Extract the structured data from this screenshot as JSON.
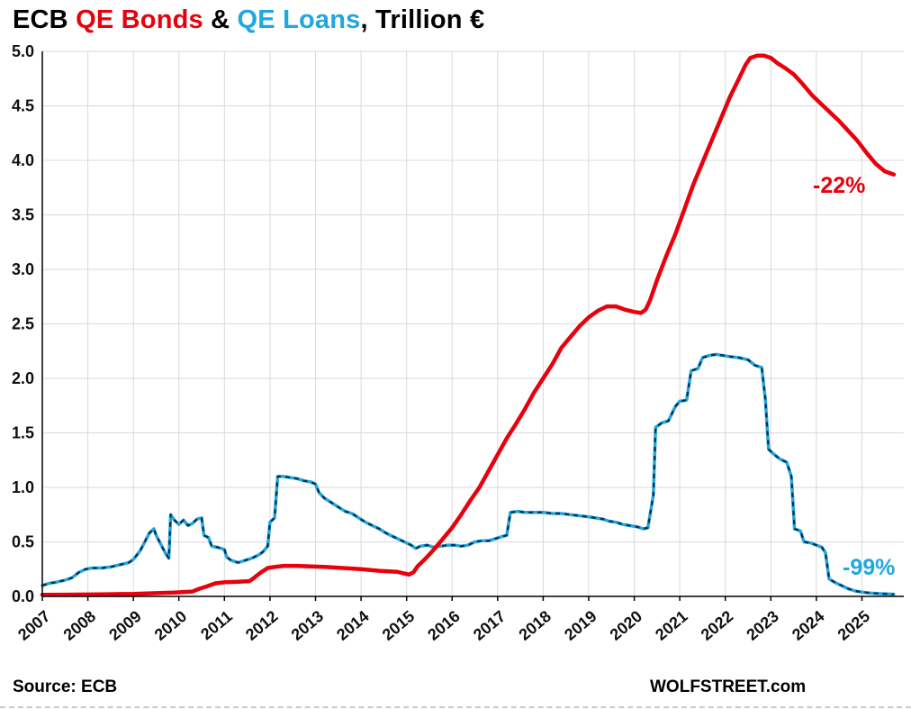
{
  "title": {
    "prefix": "ECB ",
    "bonds": "QE Bonds",
    "amp": " & ",
    "loans": "QE Loans",
    "suffix": ", Trillion €"
  },
  "footer": {
    "source": "Source: ECB",
    "brand": "WOLFSTREET.com"
  },
  "colors": {
    "bonds": "#e8000d",
    "loans": "#1fa7e0",
    "loans_overlay": "#132c44",
    "grid": "#d9d9d9",
    "axis": "#000000",
    "tick_text": "#111111"
  },
  "chart_data": {
    "type": "line",
    "title": "ECB QE Bonds & QE Loans, Trillion €",
    "xlabel": "",
    "ylabel": "Trillion €",
    "ylim": [
      0,
      5
    ],
    "ytick_step": 0.5,
    "xlim": [
      2007,
      2025.92
    ],
    "xticks": [
      2007,
      2008,
      2009,
      2010,
      2011,
      2012,
      2013,
      2014,
      2015,
      2016,
      2017,
      2018,
      2019,
      2020,
      2021,
      2022,
      2023,
      2024,
      2025
    ],
    "grid": true,
    "legend_position": "none (colored title)",
    "annotations": [
      {
        "text": "-22%",
        "series": "QE Bonds",
        "color_key": "bonds"
      },
      {
        "text": "-99%",
        "series": "QE Loans",
        "color_key": "loans"
      }
    ],
    "series": [
      {
        "name": "QE Loans",
        "color_key": "loans",
        "overlay_color_key": "loans_overlay",
        "style": "cyan line with dark dashed overlay",
        "points": [
          [
            2007.0,
            0.1
          ],
          [
            2007.15,
            0.12
          ],
          [
            2007.3,
            0.13
          ],
          [
            2007.5,
            0.15
          ],
          [
            2007.65,
            0.17
          ],
          [
            2007.8,
            0.22
          ],
          [
            2007.95,
            0.25
          ],
          [
            2008.1,
            0.26
          ],
          [
            2008.3,
            0.26
          ],
          [
            2008.5,
            0.27
          ],
          [
            2008.7,
            0.29
          ],
          [
            2008.9,
            0.31
          ],
          [
            2009.0,
            0.34
          ],
          [
            2009.15,
            0.42
          ],
          [
            2009.25,
            0.5
          ],
          [
            2009.35,
            0.58
          ],
          [
            2009.45,
            0.62
          ],
          [
            2009.5,
            0.56
          ],
          [
            2009.6,
            0.48
          ],
          [
            2009.7,
            0.4
          ],
          [
            2009.78,
            0.35
          ],
          [
            2009.82,
            0.75
          ],
          [
            2009.9,
            0.7
          ],
          [
            2010.0,
            0.66
          ],
          [
            2010.1,
            0.7
          ],
          [
            2010.2,
            0.65
          ],
          [
            2010.3,
            0.67
          ],
          [
            2010.4,
            0.71
          ],
          [
            2010.5,
            0.72
          ],
          [
            2010.55,
            0.56
          ],
          [
            2010.65,
            0.54
          ],
          [
            2010.72,
            0.46
          ],
          [
            2010.85,
            0.45
          ],
          [
            2011.0,
            0.43
          ],
          [
            2011.05,
            0.36
          ],
          [
            2011.15,
            0.33
          ],
          [
            2011.3,
            0.31
          ],
          [
            2011.45,
            0.33
          ],
          [
            2011.6,
            0.35
          ],
          [
            2011.75,
            0.38
          ],
          [
            2011.85,
            0.41
          ],
          [
            2011.95,
            0.46
          ],
          [
            2012.0,
            0.68
          ],
          [
            2012.1,
            0.72
          ],
          [
            2012.17,
            1.1
          ],
          [
            2012.3,
            1.1
          ],
          [
            2012.45,
            1.09
          ],
          [
            2012.6,
            1.08
          ],
          [
            2012.75,
            1.06
          ],
          [
            2012.9,
            1.05
          ],
          [
            2013.0,
            1.03
          ],
          [
            2013.08,
            0.95
          ],
          [
            2013.2,
            0.9
          ],
          [
            2013.35,
            0.86
          ],
          [
            2013.5,
            0.82
          ],
          [
            2013.65,
            0.78
          ],
          [
            2013.8,
            0.76
          ],
          [
            2013.95,
            0.72
          ],
          [
            2014.1,
            0.68
          ],
          [
            2014.25,
            0.65
          ],
          [
            2014.4,
            0.62
          ],
          [
            2014.55,
            0.58
          ],
          [
            2014.7,
            0.55
          ],
          [
            2014.85,
            0.52
          ],
          [
            2015.0,
            0.49
          ],
          [
            2015.1,
            0.47
          ],
          [
            2015.2,
            0.44
          ],
          [
            2015.3,
            0.46
          ],
          [
            2015.45,
            0.47
          ],
          [
            2015.6,
            0.45
          ],
          [
            2015.75,
            0.46
          ],
          [
            2015.9,
            0.47
          ],
          [
            2016.05,
            0.47
          ],
          [
            2016.2,
            0.46
          ],
          [
            2016.35,
            0.47
          ],
          [
            2016.5,
            0.5
          ],
          [
            2016.65,
            0.51
          ],
          [
            2016.8,
            0.51
          ],
          [
            2016.95,
            0.53
          ],
          [
            2017.1,
            0.55
          ],
          [
            2017.2,
            0.56
          ],
          [
            2017.28,
            0.77
          ],
          [
            2017.45,
            0.78
          ],
          [
            2017.6,
            0.77
          ],
          [
            2017.8,
            0.77
          ],
          [
            2018.0,
            0.77
          ],
          [
            2018.2,
            0.76
          ],
          [
            2018.4,
            0.76
          ],
          [
            2018.6,
            0.75
          ],
          [
            2018.8,
            0.74
          ],
          [
            2019.0,
            0.73
          ],
          [
            2019.15,
            0.72
          ],
          [
            2019.3,
            0.71
          ],
          [
            2019.45,
            0.69
          ],
          [
            2019.6,
            0.68
          ],
          [
            2019.75,
            0.66
          ],
          [
            2019.9,
            0.65
          ],
          [
            2020.05,
            0.64
          ],
          [
            2020.2,
            0.62
          ],
          [
            2020.3,
            0.63
          ],
          [
            2020.42,
            0.93
          ],
          [
            2020.47,
            1.55
          ],
          [
            2020.6,
            1.59
          ],
          [
            2020.75,
            1.61
          ],
          [
            2020.9,
            1.74
          ],
          [
            2021.0,
            1.79
          ],
          [
            2021.15,
            1.8
          ],
          [
            2021.25,
            2.07
          ],
          [
            2021.4,
            2.09
          ],
          [
            2021.5,
            2.19
          ],
          [
            2021.65,
            2.21
          ],
          [
            2021.8,
            2.22
          ],
          [
            2021.95,
            2.21
          ],
          [
            2022.1,
            2.2
          ],
          [
            2022.3,
            2.19
          ],
          [
            2022.5,
            2.17
          ],
          [
            2022.65,
            2.12
          ],
          [
            2022.8,
            2.1
          ],
          [
            2022.88,
            1.81
          ],
          [
            2022.95,
            1.35
          ],
          [
            2023.05,
            1.31
          ],
          [
            2023.2,
            1.26
          ],
          [
            2023.35,
            1.23
          ],
          [
            2023.45,
            1.1
          ],
          [
            2023.52,
            0.62
          ],
          [
            2023.65,
            0.6
          ],
          [
            2023.73,
            0.5
          ],
          [
            2023.88,
            0.49
          ],
          [
            2024.0,
            0.47
          ],
          [
            2024.12,
            0.45
          ],
          [
            2024.2,
            0.4
          ],
          [
            2024.28,
            0.16
          ],
          [
            2024.4,
            0.13
          ],
          [
            2024.55,
            0.1
          ],
          [
            2024.7,
            0.07
          ],
          [
            2024.85,
            0.05
          ],
          [
            2025.0,
            0.04
          ],
          [
            2025.2,
            0.03
          ],
          [
            2025.4,
            0.025
          ],
          [
            2025.55,
            0.022
          ],
          [
            2025.7,
            0.02
          ]
        ]
      },
      {
        "name": "QE Bonds",
        "color_key": "bonds",
        "style": "thick solid red line",
        "points": [
          [
            2007.0,
            0.015
          ],
          [
            2007.5,
            0.016
          ],
          [
            2008.0,
            0.017
          ],
          [
            2008.5,
            0.02
          ],
          [
            2009.0,
            0.022
          ],
          [
            2009.5,
            0.03
          ],
          [
            2009.9,
            0.035
          ],
          [
            2010.3,
            0.045
          ],
          [
            2010.45,
            0.07
          ],
          [
            2010.6,
            0.09
          ],
          [
            2010.8,
            0.12
          ],
          [
            2011.0,
            0.13
          ],
          [
            2011.3,
            0.135
          ],
          [
            2011.55,
            0.14
          ],
          [
            2011.65,
            0.17
          ],
          [
            2011.8,
            0.22
          ],
          [
            2011.95,
            0.26
          ],
          [
            2012.1,
            0.27
          ],
          [
            2012.3,
            0.28
          ],
          [
            2012.6,
            0.28
          ],
          [
            2012.9,
            0.275
          ],
          [
            2013.2,
            0.27
          ],
          [
            2013.6,
            0.26
          ],
          [
            2014.0,
            0.25
          ],
          [
            2014.4,
            0.235
          ],
          [
            2014.8,
            0.225
          ],
          [
            2014.95,
            0.21
          ],
          [
            2015.05,
            0.2
          ],
          [
            2015.15,
            0.22
          ],
          [
            2015.25,
            0.28
          ],
          [
            2015.4,
            0.34
          ],
          [
            2015.6,
            0.43
          ],
          [
            2015.8,
            0.53
          ],
          [
            2016.0,
            0.63
          ],
          [
            2016.2,
            0.75
          ],
          [
            2016.4,
            0.88
          ],
          [
            2016.6,
            1.0
          ],
          [
            2016.8,
            1.15
          ],
          [
            2017.0,
            1.3
          ],
          [
            2017.2,
            1.45
          ],
          [
            2017.4,
            1.58
          ],
          [
            2017.6,
            1.72
          ],
          [
            2017.8,
            1.87
          ],
          [
            2018.0,
            2.0
          ],
          [
            2018.2,
            2.13
          ],
          [
            2018.4,
            2.28
          ],
          [
            2018.6,
            2.38
          ],
          [
            2018.8,
            2.48
          ],
          [
            2019.0,
            2.56
          ],
          [
            2019.2,
            2.62
          ],
          [
            2019.4,
            2.66
          ],
          [
            2019.6,
            2.66
          ],
          [
            2019.8,
            2.63
          ],
          [
            2020.0,
            2.61
          ],
          [
            2020.15,
            2.6
          ],
          [
            2020.25,
            2.63
          ],
          [
            2020.35,
            2.72
          ],
          [
            2020.5,
            2.9
          ],
          [
            2020.7,
            3.12
          ],
          [
            2020.9,
            3.32
          ],
          [
            2021.1,
            3.55
          ],
          [
            2021.3,
            3.78
          ],
          [
            2021.5,
            3.98
          ],
          [
            2021.7,
            4.18
          ],
          [
            2021.9,
            4.38
          ],
          [
            2022.1,
            4.58
          ],
          [
            2022.3,
            4.75
          ],
          [
            2022.45,
            4.88
          ],
          [
            2022.55,
            4.94
          ],
          [
            2022.7,
            4.96
          ],
          [
            2022.85,
            4.96
          ],
          [
            2023.0,
            4.94
          ],
          [
            2023.15,
            4.89
          ],
          [
            2023.3,
            4.85
          ],
          [
            2023.5,
            4.79
          ],
          [
            2023.7,
            4.7
          ],
          [
            2023.9,
            4.6
          ],
          [
            2024.1,
            4.52
          ],
          [
            2024.3,
            4.44
          ],
          [
            2024.5,
            4.36
          ],
          [
            2024.7,
            4.27
          ],
          [
            2024.9,
            4.18
          ],
          [
            2025.1,
            4.07
          ],
          [
            2025.3,
            3.97
          ],
          [
            2025.5,
            3.9
          ],
          [
            2025.7,
            3.87
          ]
        ]
      }
    ]
  }
}
